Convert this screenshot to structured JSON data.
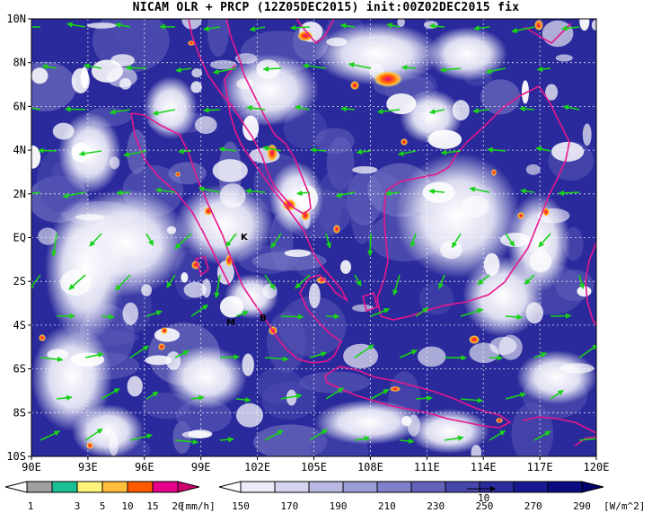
{
  "title": "NICAM OLR + PRCP (12Z05DEC2015) init:00Z02DEC2015 fix",
  "map": {
    "lat_labels": [
      "10N",
      "8N",
      "6N",
      "4N",
      "2N",
      "EQ",
      "2S",
      "4S",
      "6S",
      "8S",
      "10S"
    ],
    "lon_labels": [
      "90E",
      "93E",
      "96E",
      "99E",
      "102E",
      "105E",
      "108E",
      "111E",
      "114E",
      "117E",
      "120E"
    ],
    "lat_range": [
      -10,
      10
    ],
    "lon_range": [
      90,
      120
    ],
    "places": [
      {
        "label": "K",
        "lon": 101.3,
        "lat": -0.1
      },
      {
        "label": "B",
        "lon": 102.3,
        "lat": -3.8
      },
      {
        "label": "M",
        "lon": 100.6,
        "lat": -4.0
      }
    ],
    "colors": {
      "coastline": "#e6178c",
      "wind_arrow": "#19d219",
      "grid": "#ffffff"
    }
  },
  "precip_colorbar": {
    "labels": [
      "1",
      "3",
      "5",
      "10",
      "15",
      "20"
    ],
    "unit": "[mm/h]",
    "colors": [
      "#ffffff",
      "#a0a0a0",
      "#1abf96",
      "#fff57a",
      "#ffbe3c",
      "#ff5a00",
      "#e6008c",
      "#d0006f"
    ]
  },
  "olr_colorbar": {
    "labels": [
      "150",
      "170",
      "190",
      "210",
      "230",
      "250",
      "270",
      "290"
    ],
    "unit": "[W/m^2]",
    "arrow_label": "10",
    "colors": [
      "#ffffff",
      "#ececf8",
      "#d4d4ef",
      "#b9b9e4",
      "#9c9cd7",
      "#7f80c9",
      "#6262bb",
      "#4646ad",
      "#2c2c9f",
      "#181892",
      "#0b0b82",
      "#00006d"
    ]
  }
}
